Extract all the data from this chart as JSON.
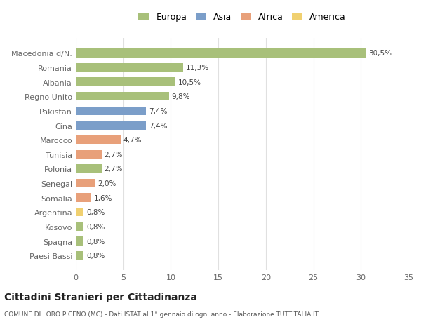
{
  "countries": [
    "Macedonia d/N.",
    "Romania",
    "Albania",
    "Regno Unito",
    "Pakistan",
    "Cina",
    "Marocco",
    "Tunisia",
    "Polonia",
    "Senegal",
    "Somalia",
    "Argentina",
    "Kosovo",
    "Spagna",
    "Paesi Bassi"
  ],
  "values": [
    30.5,
    11.3,
    10.5,
    9.8,
    7.4,
    7.4,
    4.7,
    2.7,
    2.7,
    2.0,
    1.6,
    0.8,
    0.8,
    0.8,
    0.8
  ],
  "labels": [
    "30,5%",
    "11,3%",
    "10,5%",
    "9,8%",
    "7,4%",
    "7,4%",
    "4,7%",
    "2,7%",
    "2,7%",
    "2,0%",
    "1,6%",
    "0,8%",
    "0,8%",
    "0,8%",
    "0,8%"
  ],
  "continent": [
    "Europa",
    "Europa",
    "Europa",
    "Europa",
    "Asia",
    "Asia",
    "Africa",
    "Africa",
    "Europa",
    "Africa",
    "Africa",
    "America",
    "Europa",
    "Europa",
    "Europa"
  ],
  "colors": {
    "Europa": "#a8c07a",
    "Asia": "#7b9ec9",
    "Africa": "#e8a07a",
    "America": "#f0d070"
  },
  "legend_order": [
    "Europa",
    "Asia",
    "Africa",
    "America"
  ],
  "legend_colors": [
    "#a8c07a",
    "#7b9ec9",
    "#e8a07a",
    "#f0d070"
  ],
  "xlim": [
    0,
    35
  ],
  "xticks": [
    0,
    5,
    10,
    15,
    20,
    25,
    30,
    35
  ],
  "title": "Cittadini Stranieri per Cittadinanza",
  "subtitle": "COMUNE DI LORO PICENO (MC) - Dati ISTAT al 1° gennaio di ogni anno - Elaborazione TUTTITALIA.IT",
  "bg_color": "#ffffff",
  "grid_color": "#e0e0e0",
  "bar_height": 0.6
}
